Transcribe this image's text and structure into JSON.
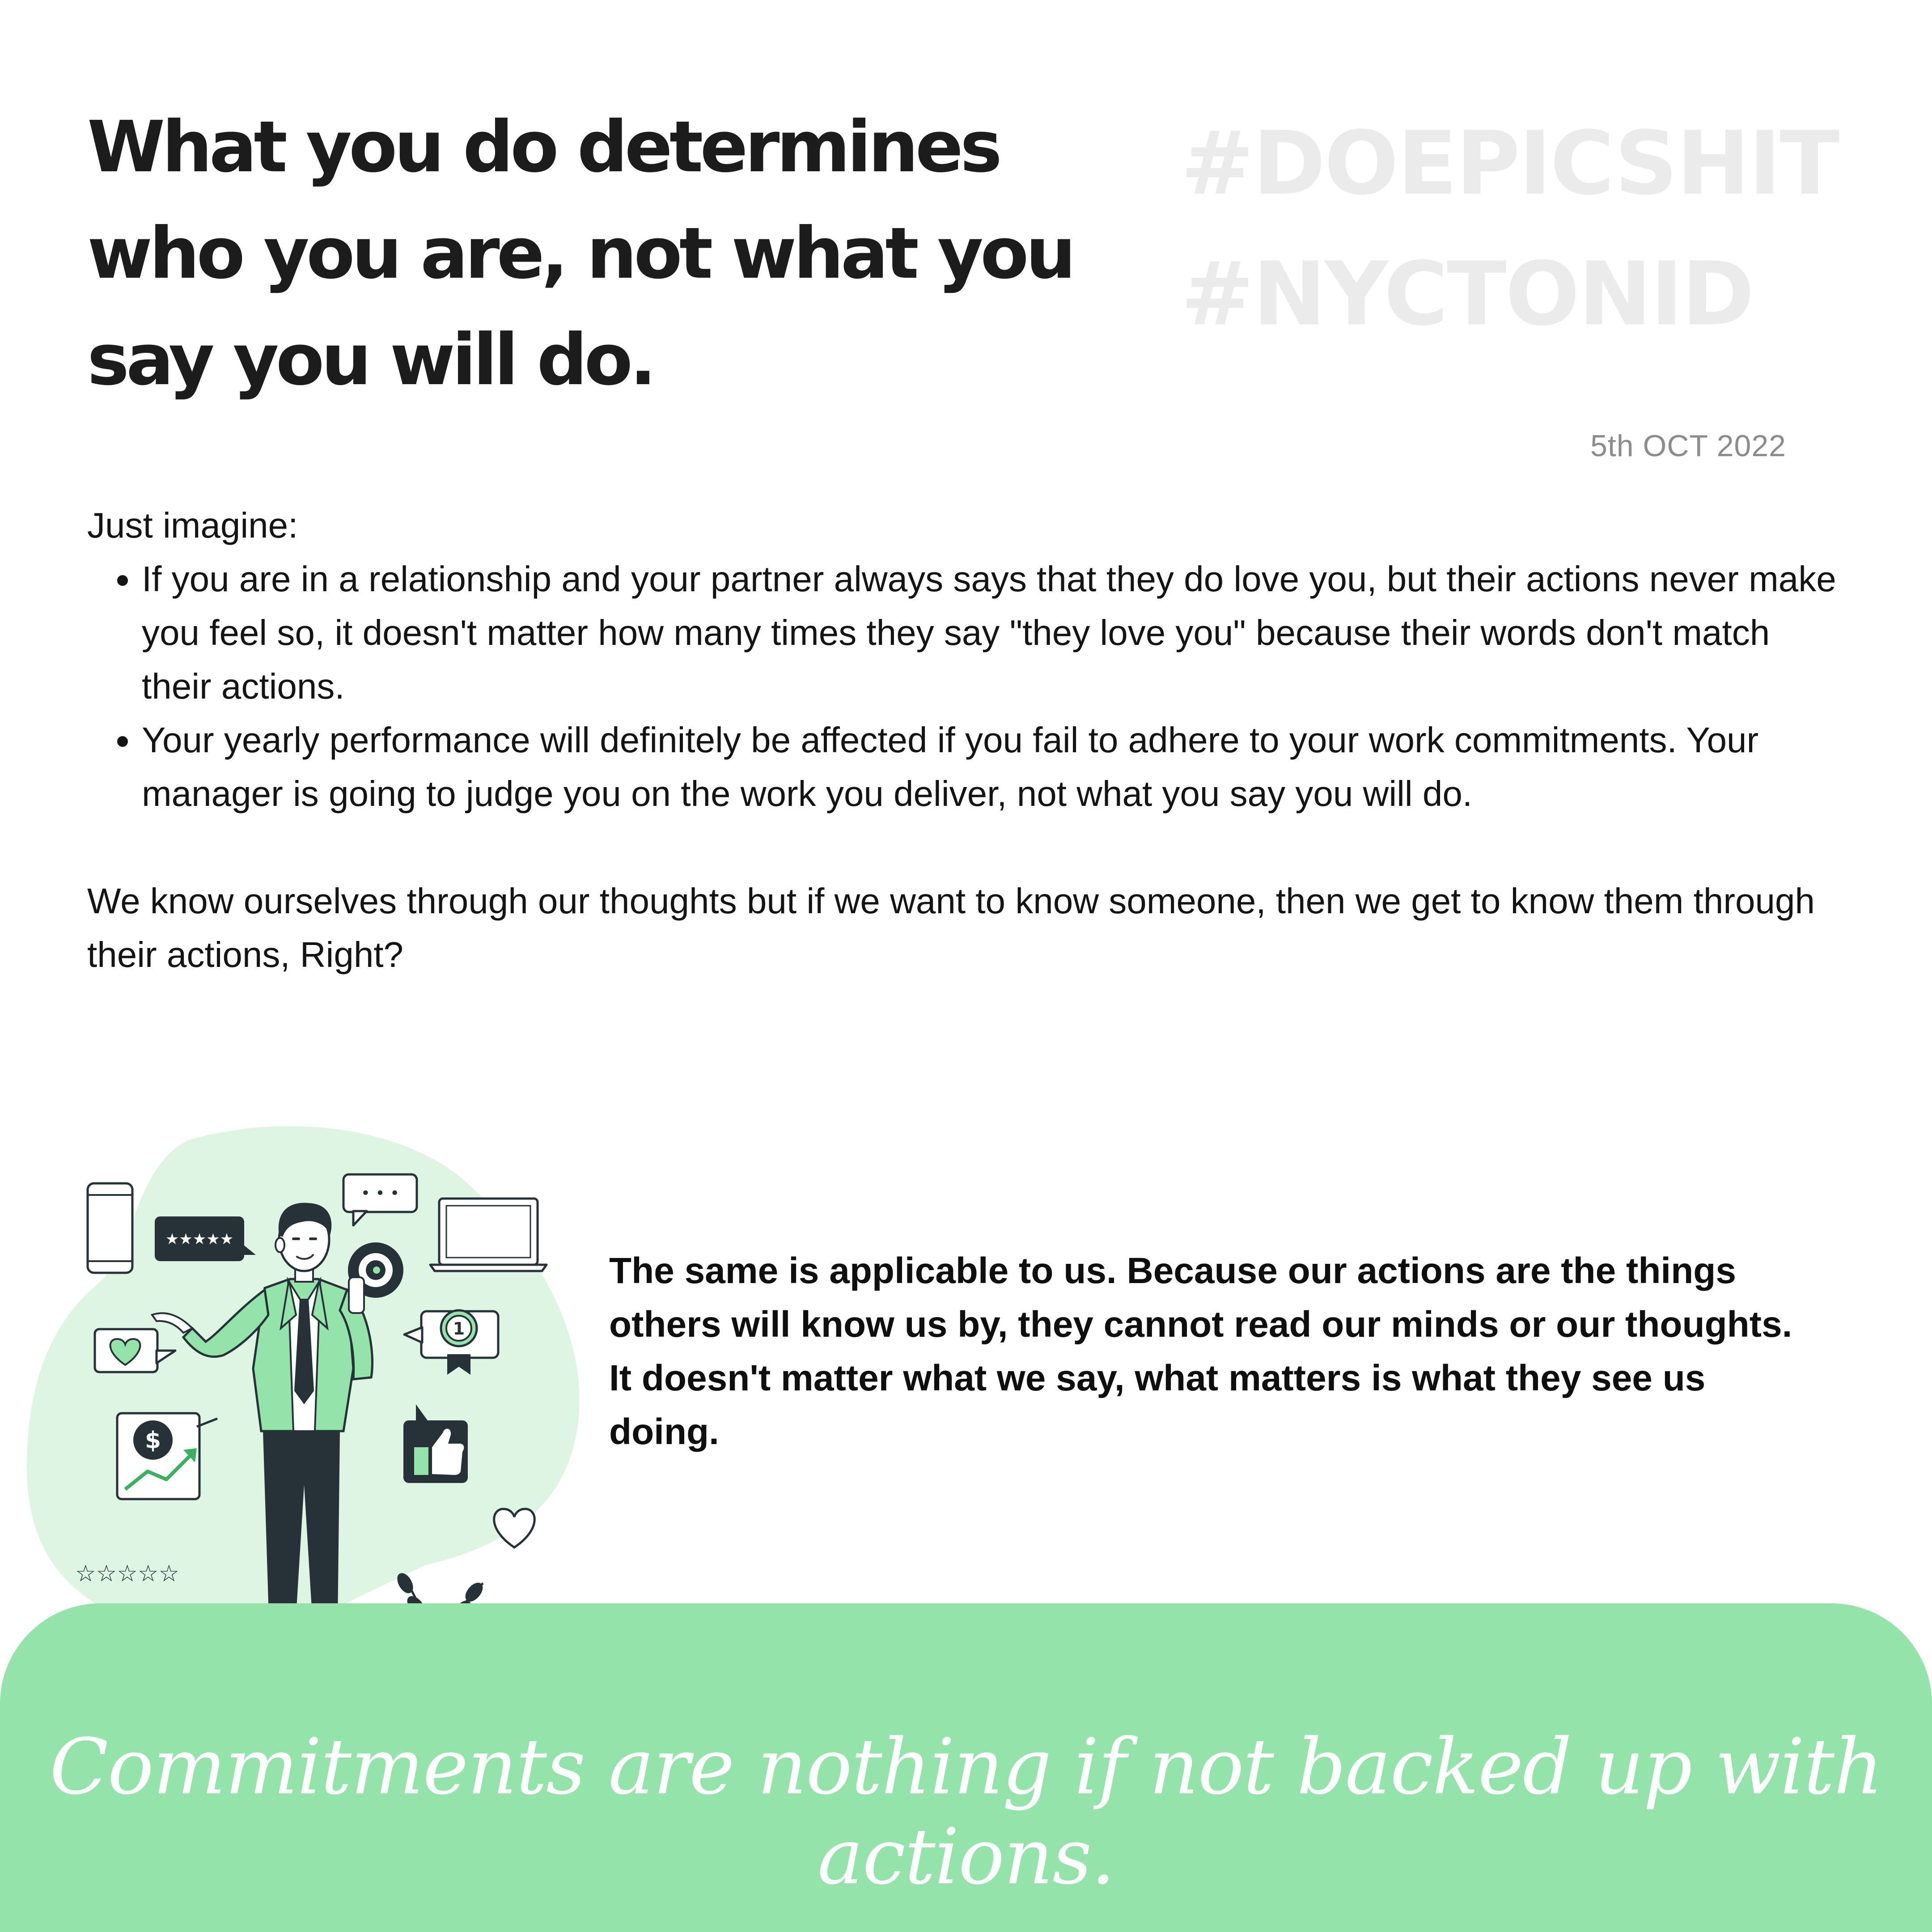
{
  "headline": {
    "line1": "What you do determines",
    "line2": "who you are, not what you",
    "line3": "say you will do."
  },
  "hashtags": [
    "#DOEPICSHIT",
    "#NYCTONID"
  ],
  "date": "5th OCT 2022",
  "intro": "Just imagine:",
  "bullets": [
    "If you are in a relationship and your partner always says that they do love you, but their actions never make you feel so, it doesn't matter how many times they say \"they love you\" because their words don't match their actions.",
    "Your yearly performance will definitely be affected if you fail to adhere to your work commitments. Your manager is going to judge you on the work you deliver, not what you say you will do."
  ],
  "closing": "We know ourselves through our thoughts but if we want to know someone, then we get to know them through their actions, Right?",
  "highlight": "The same is applicable to us. Because our actions are the things others will know us by, they cannot read our minds or our thoughts. It doesn't matter what we say, what matters is what they see us doing.",
  "quote": "Commitments are nothing if not backed up with actions.",
  "illustration": {
    "stars_small": "★★★★★",
    "stars_outline": "☆☆☆☆☆",
    "chat_dots": "• • •",
    "currency_symbol": "$",
    "rank_number": "1",
    "colors": {
      "accent_green": "#93e3aa",
      "light_green": "#def5e4",
      "dark": "#263238"
    }
  }
}
